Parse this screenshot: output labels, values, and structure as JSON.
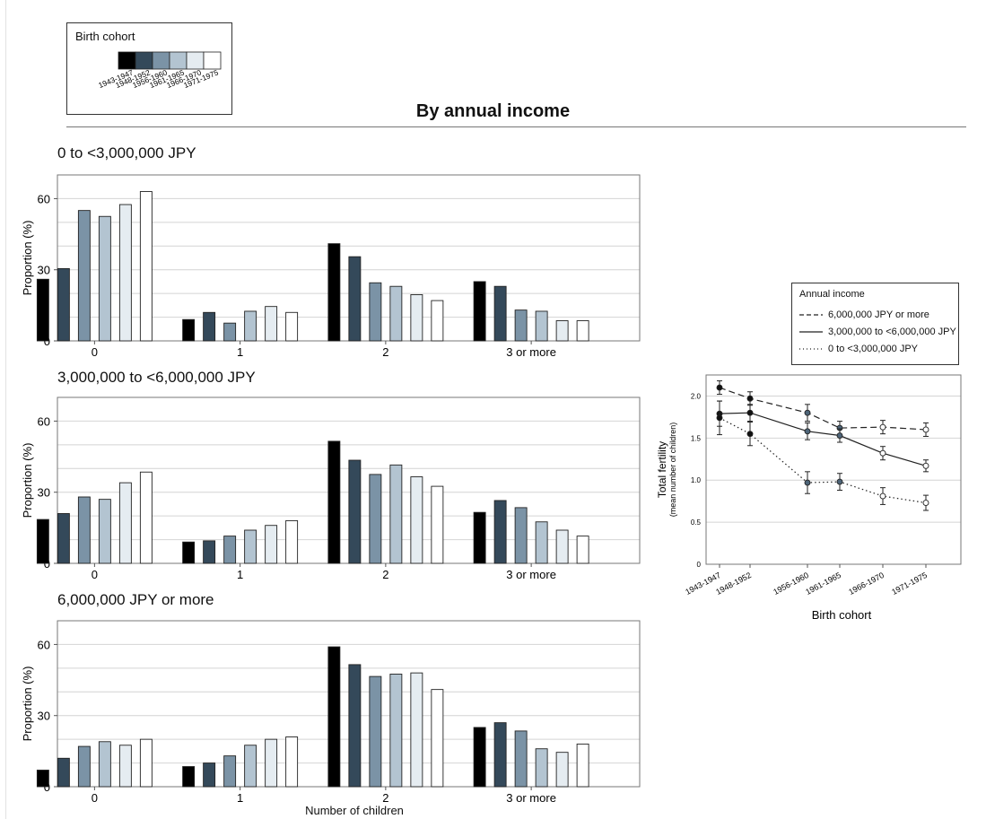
{
  "main_title": "By annual income",
  "cohort_legend": {
    "title": "Birth cohort",
    "cohorts": [
      "1943-1947",
      "1948-1952",
      "1956-1960",
      "1961-1965",
      "1966-1970",
      "1971-1975"
    ],
    "colors": [
      "#000000",
      "#34495a",
      "#7b93a6",
      "#b3c4d1",
      "#e5ecf1",
      "#ffffff"
    ]
  },
  "bar_axis": {
    "ylabel": "Proportion (%)",
    "xlabel": "Number of children"
  },
  "fertility_legend": {
    "title": "Annual income",
    "entries": [
      "6,000,000 JPY or more",
      "3,000,000 to <6,000,000 JPY",
      "0 to <3,000,000 JPY"
    ]
  },
  "chart_data": [
    {
      "type": "bar",
      "title": "0 to <3,000,000 JPY",
      "categories": [
        "0",
        "1",
        "2",
        "3 or more"
      ],
      "ylabel": "Proportion (%)",
      "ylim": [
        0,
        70
      ],
      "yticks": [
        0,
        30,
        60
      ],
      "grid": true,
      "series": [
        {
          "name": "1943-1947",
          "values": [
            26,
            9,
            41,
            25
          ]
        },
        {
          "name": "1948-1952",
          "values": [
            30.5,
            12,
            35.5,
            23
          ]
        },
        {
          "name": "1956-1960",
          "values": [
            55,
            7.5,
            24.5,
            13
          ]
        },
        {
          "name": "1961-1965",
          "values": [
            52.5,
            12.5,
            23,
            12.5
          ]
        },
        {
          "name": "1966-1970",
          "values": [
            57.5,
            14.5,
            19.5,
            8.5
          ]
        },
        {
          "name": "1971-1975",
          "values": [
            63,
            12,
            17,
            8.5
          ]
        }
      ]
    },
    {
      "type": "bar",
      "title": "3,000,000 to <6,000,000 JPY",
      "categories": [
        "0",
        "1",
        "2",
        "3 or more"
      ],
      "ylabel": "Proportion (%)",
      "ylim": [
        0,
        70
      ],
      "yticks": [
        0,
        30,
        60
      ],
      "grid": true,
      "series": [
        {
          "name": "1943-1947",
          "values": [
            18.5,
            9,
            51.5,
            21.5
          ]
        },
        {
          "name": "1948-1952",
          "values": [
            21,
            9.5,
            43.5,
            26.5
          ]
        },
        {
          "name": "1956-1960",
          "values": [
            28,
            11.5,
            37.5,
            23.5
          ]
        },
        {
          "name": "1961-1965",
          "values": [
            27,
            14,
            41.5,
            17.5
          ]
        },
        {
          "name": "1966-1970",
          "values": [
            34,
            16,
            36.5,
            14
          ]
        },
        {
          "name": "1971-1975",
          "values": [
            38.5,
            18,
            32.5,
            11.5
          ]
        }
      ]
    },
    {
      "type": "bar",
      "title": "6,000,000 JPY or more",
      "categories": [
        "0",
        "1",
        "2",
        "3 or more"
      ],
      "ylabel": "Proportion (%)",
      "xlabel": "Number of children",
      "ylim": [
        0,
        70
      ],
      "yticks": [
        0,
        30,
        60
      ],
      "grid": true,
      "series": [
        {
          "name": "1943-1947",
          "values": [
            7,
            8.5,
            59,
            25
          ]
        },
        {
          "name": "1948-1952",
          "values": [
            12,
            10,
            51.5,
            27
          ]
        },
        {
          "name": "1956-1960",
          "values": [
            17,
            13,
            46.5,
            23.5
          ]
        },
        {
          "name": "1961-1965",
          "values": [
            19,
            17.5,
            47.5,
            16
          ]
        },
        {
          "name": "1966-1970",
          "values": [
            17.5,
            20,
            48,
            14.5
          ]
        },
        {
          "name": "1971-1975",
          "values": [
            20,
            21,
            41,
            18
          ]
        }
      ]
    },
    {
      "type": "line",
      "x": [
        "1943-1947",
        "1948-1952",
        "1956-1960",
        "1961-1965",
        "1966-1970",
        "1971-1975"
      ],
      "xlabel": "Birth cohort",
      "ylabel": "Total fertility",
      "ylabel_sub": "(mean number of children)",
      "ylim": [
        0,
        2.25
      ],
      "yticks": [
        "0",
        "0.5",
        "1.0",
        "1.5",
        "2.0"
      ],
      "grid": true,
      "series": [
        {
          "name": "6,000,000 JPY or more",
          "style": "dashed",
          "values": [
            2.1,
            1.97,
            1.8,
            1.62,
            1.63,
            1.6
          ],
          "err": [
            0.08,
            0.08,
            0.1,
            0.08,
            0.08,
            0.08
          ]
        },
        {
          "name": "3,000,000 to <6,000,000 JPY",
          "style": "solid",
          "values": [
            1.79,
            1.8,
            1.58,
            1.53,
            1.32,
            1.17
          ],
          "err": [
            0.15,
            0.1,
            0.1,
            0.08,
            0.08,
            0.07
          ]
        },
        {
          "name": "0 to <3,000,000 JPY",
          "style": "dotted",
          "values": [
            1.74,
            1.55,
            0.97,
            0.98,
            0.81,
            0.73
          ],
          "err": [
            0.2,
            0.14,
            0.13,
            0.1,
            0.1,
            0.09
          ]
        }
      ]
    }
  ]
}
